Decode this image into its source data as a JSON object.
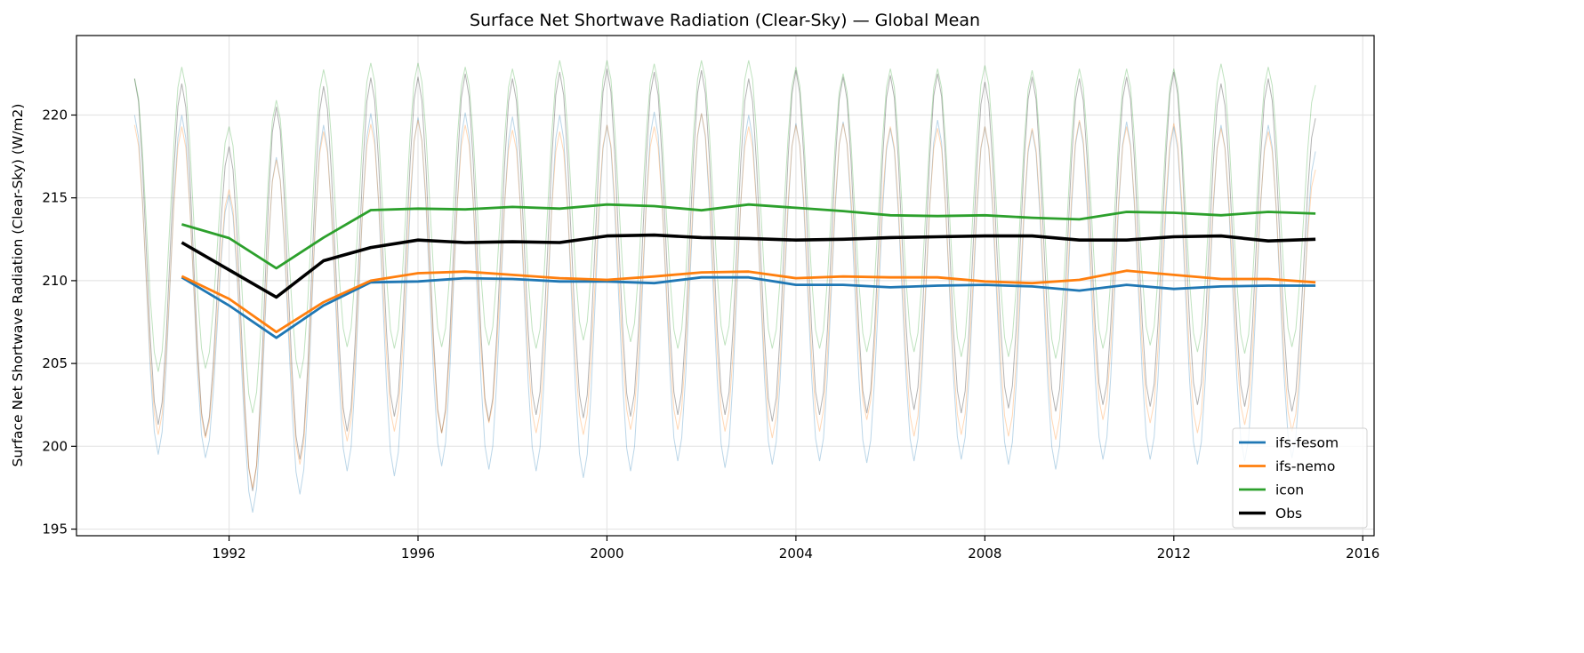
{
  "chart_data": {
    "type": "line",
    "title": "Surface Net Shortwave Radiation (Clear-Sky) — Global Mean",
    "xlabel": "",
    "ylabel": "Surface Net Shortwave Radiation (Clear-Sky) (W/m2)",
    "xlim": [
      1988.77,
      2016.24
    ],
    "ylim": [
      194.6,
      224.8
    ],
    "xticks": [
      1992,
      1996,
      2000,
      2004,
      2008,
      2012,
      2016
    ],
    "yticks": [
      195,
      200,
      205,
      210,
      215,
      220
    ],
    "grid": true,
    "legend_position": "lower-right",
    "annual_years": [
      1991,
      1992,
      1993,
      1994,
      1995,
      1996,
      1997,
      1998,
      1999,
      2000,
      2001,
      2002,
      2003,
      2004,
      2005,
      2006,
      2007,
      2008,
      2009,
      2010,
      2011,
      2012,
      2013,
      2014,
      2015
    ],
    "series": [
      {
        "name": "ifs-fesom",
        "color": "#1f77b4",
        "annual_mean": [
          210.2,
          208.5,
          206.55,
          208.5,
          209.9,
          209.95,
          210.15,
          210.1,
          209.95,
          209.95,
          209.85,
          210.2,
          210.2,
          209.75,
          209.75,
          209.6,
          209.7,
          209.75,
          209.65,
          209.4,
          209.75,
          209.5,
          209.65,
          209.7,
          209.7
        ],
        "monthly_peaks_jan_1990_2015": [
          220.0,
          220.0,
          215.2,
          217.45,
          219.4,
          220.1,
          219.85,
          220.15,
          219.9,
          220.0,
          219.4,
          220.2,
          220.1,
          220.0,
          219.5,
          219.6,
          219.2,
          219.7,
          219.3,
          219.1,
          219.6,
          219.6,
          219.3,
          219.4,
          219.4,
          217.8
        ],
        "monthly_troughs_jul_1990_2014": [
          199.5,
          199.3,
          196.0,
          197.1,
          198.5,
          198.2,
          198.8,
          198.6,
          198.5,
          198.1,
          198.5,
          199.1,
          198.7,
          198.9,
          199.1,
          199.0,
          199.1,
          199.2,
          198.9,
          198.6,
          199.2,
          199.2,
          198.9,
          199.1,
          199.3
        ]
      },
      {
        "name": "ifs-nemo",
        "color": "#ff7f0e",
        "annual_mean": [
          210.27,
          208.9,
          206.9,
          208.7,
          210.0,
          210.45,
          210.55,
          210.35,
          210.15,
          210.05,
          210.25,
          210.5,
          210.55,
          210.15,
          210.25,
          210.2,
          210.2,
          209.95,
          209.85,
          210.05,
          210.6,
          210.35,
          210.1,
          210.1,
          209.9
        ],
        "monthly_peaks_jan_1990_2015": [
          219.4,
          219.3,
          215.5,
          217.3,
          219.0,
          219.45,
          219.7,
          219.4,
          219.1,
          219.0,
          219.4,
          219.3,
          220.1,
          219.3,
          219.4,
          219.5,
          219.3,
          219.2,
          219.3,
          219.2,
          219.7,
          219.3,
          219.5,
          219.2,
          219.0,
          216.7
        ],
        "monthly_troughs_jul_1990_2014": [
          200.7,
          200.5,
          197.5,
          198.9,
          200.3,
          200.9,
          200.8,
          201.4,
          200.8,
          200.7,
          201.0,
          201.0,
          200.9,
          200.5,
          200.9,
          201.6,
          200.6,
          200.7,
          200.6,
          200.4,
          201.6,
          201.4,
          200.8,
          201.3,
          200.9
        ]
      },
      {
        "name": "icon",
        "color": "#2ca02c",
        "annual_mean": [
          213.4,
          212.57,
          210.75,
          212.6,
          214.26,
          214.35,
          214.3,
          214.45,
          214.35,
          214.6,
          214.5,
          214.25,
          214.6,
          214.4,
          214.2,
          213.95,
          213.9,
          213.95,
          213.8,
          213.7,
          214.15,
          214.1,
          213.95,
          214.15,
          214.05
        ],
        "monthly_peaks_jan_1990_2015": [
          222.2,
          222.9,
          219.3,
          220.9,
          222.75,
          223.15,
          223.15,
          222.9,
          222.8,
          223.3,
          223.3,
          223.1,
          223.3,
          223.3,
          222.9,
          222.5,
          222.8,
          222.8,
          223.0,
          222.7,
          222.8,
          222.8,
          222.8,
          223.1,
          222.9,
          221.8
        ],
        "monthly_troughs_jul_1990_2014": [
          204.5,
          204.7,
          202.0,
          204.1,
          206.0,
          205.9,
          206.0,
          206.1,
          205.9,
          206.4,
          206.3,
          205.9,
          206.1,
          205.9,
          205.9,
          205.7,
          205.7,
          205.4,
          205.4,
          205.3,
          205.9,
          206.1,
          205.7,
          205.6,
          206.0
        ]
      },
      {
        "name": "Obs",
        "color": "#000000",
        "annual_mean": [
          212.3,
          210.65,
          209.0,
          211.2,
          212.0,
          212.45,
          212.3,
          212.35,
          212.3,
          212.7,
          212.75,
          212.6,
          212.55,
          212.45,
          212.5,
          212.6,
          212.65,
          212.7,
          212.7,
          212.45,
          212.45,
          212.65,
          212.7,
          212.4,
          212.5
        ],
        "monthly_peaks_jan_1990_2015": [
          222.2,
          221.9,
          218.1,
          220.5,
          221.75,
          222.25,
          222.3,
          222.5,
          222.2,
          222.6,
          222.8,
          222.6,
          222.7,
          222.2,
          222.7,
          222.3,
          222.4,
          222.5,
          222.0,
          222.3,
          222.2,
          222.3,
          222.6,
          221.9,
          222.2,
          219.8
        ],
        "monthly_troughs_jul_1990_2014": [
          201.3,
          200.6,
          197.3,
          199.2,
          200.9,
          201.8,
          200.8,
          201.5,
          201.9,
          201.7,
          201.8,
          201.9,
          201.9,
          201.5,
          201.9,
          202.0,
          202.2,
          202.0,
          202.3,
          202.1,
          202.5,
          202.4,
          202.5,
          202.4,
          202.1
        ]
      }
    ]
  }
}
